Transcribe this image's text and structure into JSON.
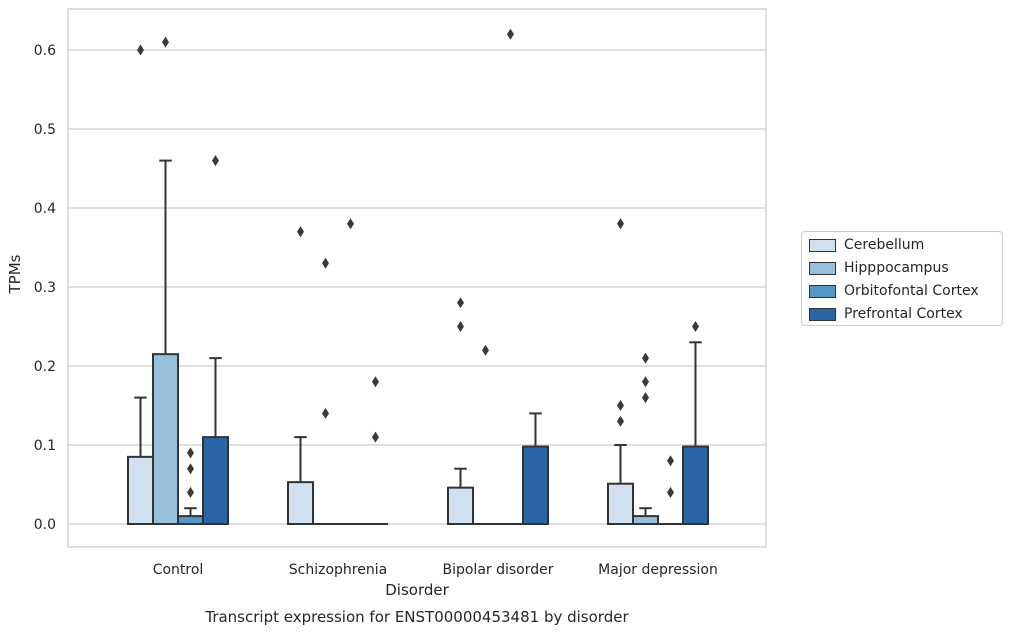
{
  "chart_data": {
    "type": "box",
    "title": "Transcript expression for ENST00000453481 by disorder",
    "xlabel": "Disorder",
    "ylabel": "TPMs",
    "ylim": [
      -0.03,
      0.655
    ],
    "yticks": [
      0.0,
      0.1,
      0.2,
      0.3,
      0.4,
      0.5,
      0.6
    ],
    "ytick_labels": [
      "0.0",
      "0.1",
      "0.2",
      "0.3",
      "0.4",
      "0.5",
      "0.6"
    ],
    "grid": "horizontal",
    "legend_position": "right",
    "categories": [
      "Control",
      "Schizophrenia",
      "Bipolar disorder",
      "Major depression"
    ],
    "series": [
      {
        "name": "Cerebellum",
        "color": "#d0e0ef",
        "boxes": [
          {
            "q1": 0.0,
            "median": 0.0,
            "q3": 0.085,
            "whisker_low": 0.0,
            "whisker_high": 0.16,
            "outliers": [
              0.6
            ]
          },
          {
            "q1": 0.0,
            "median": 0.0,
            "q3": 0.053,
            "whisker_low": 0.0,
            "whisker_high": 0.11,
            "outliers": [
              0.37
            ]
          },
          {
            "q1": 0.0,
            "median": 0.0,
            "q3": 0.046,
            "whisker_low": 0.0,
            "whisker_high": 0.07,
            "outliers": [
              0.28,
              0.25
            ]
          },
          {
            "q1": 0.0,
            "median": 0.0,
            "q3": 0.051,
            "whisker_low": 0.0,
            "whisker_high": 0.1,
            "outliers": [
              0.38,
              0.15,
              0.13
            ]
          }
        ]
      },
      {
        "name": "Hipppocampus",
        "color": "#99c0da",
        "boxes": [
          {
            "q1": 0.0,
            "median": 0.0,
            "q3": 0.215,
            "whisker_low": 0.0,
            "whisker_high": 0.46,
            "outliers": [
              0.61
            ]
          },
          {
            "q1": 0.0,
            "median": 0.0,
            "q3": 0.0,
            "whisker_low": 0.0,
            "whisker_high": 0.0,
            "outliers": [
              0.33,
              0.14
            ]
          },
          {
            "q1": 0.0,
            "median": 0.0,
            "q3": 0.0,
            "whisker_low": 0.0,
            "whisker_high": 0.0,
            "outliers": [
              0.22
            ]
          },
          {
            "q1": 0.0,
            "median": 0.0,
            "q3": 0.01,
            "whisker_low": 0.0,
            "whisker_high": 0.02,
            "outliers": [
              0.21,
              0.18,
              0.16
            ]
          }
        ]
      },
      {
        "name": "Orbitofontal Cortex",
        "color": "#5496c6",
        "boxes": [
          {
            "q1": 0.0,
            "median": 0.0,
            "q3": 0.01,
            "whisker_low": 0.0,
            "whisker_high": 0.02,
            "outliers": [
              0.09,
              0.07,
              0.04
            ]
          },
          {
            "q1": 0.0,
            "median": 0.0,
            "q3": 0.0,
            "whisker_low": 0.0,
            "whisker_high": 0.0,
            "outliers": [
              0.38
            ]
          },
          {
            "q1": 0.0,
            "median": 0.0,
            "q3": 0.0,
            "whisker_low": 0.0,
            "whisker_high": 0.0,
            "outliers": [
              0.62
            ]
          },
          {
            "q1": 0.0,
            "median": 0.0,
            "q3": 0.0,
            "whisker_low": 0.0,
            "whisker_high": 0.0,
            "outliers": [
              0.08,
              0.04
            ]
          }
        ]
      },
      {
        "name": "Prefrontal Cortex",
        "color": "#2a66a6",
        "boxes": [
          {
            "q1": 0.0,
            "median": 0.0,
            "q3": 0.11,
            "whisker_low": 0.0,
            "whisker_high": 0.21,
            "outliers": [
              0.46
            ]
          },
          {
            "q1": 0.0,
            "median": 0.0,
            "q3": 0.0,
            "whisker_low": 0.0,
            "whisker_high": 0.0,
            "outliers": [
              0.18,
              0.11
            ]
          },
          {
            "q1": 0.0,
            "median": 0.0,
            "q3": 0.098,
            "whisker_low": 0.0,
            "whisker_high": 0.14,
            "outliers": []
          },
          {
            "q1": 0.0,
            "median": 0.0,
            "q3": 0.098,
            "whisker_low": 0.0,
            "whisker_high": 0.23,
            "outliers": [
              0.25
            ]
          }
        ]
      }
    ]
  }
}
